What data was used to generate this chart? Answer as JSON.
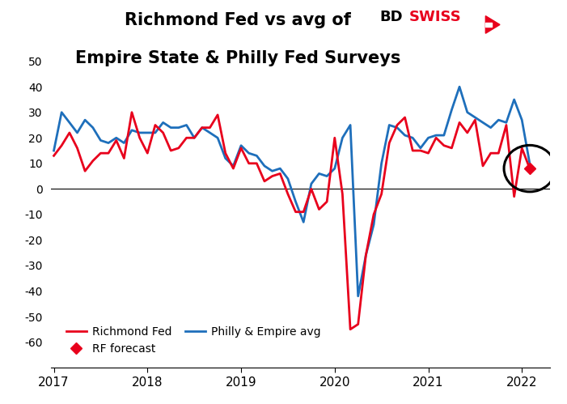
{
  "title_line1": "Richmond Fed vs avg of",
  "title_line2": "Empire State & Philly Fed Surveys",
  "ylim": [
    -70,
    55
  ],
  "yticks": [
    -60,
    -50,
    -40,
    -30,
    -20,
    -10,
    0,
    10,
    20,
    30,
    40,
    50
  ],
  "xlim_start": 2016.97,
  "xlim_end": 2022.3,
  "richmond_color": "#e8001c",
  "philly_color": "#1e6fbb",
  "background_color": "#ffffff",
  "richmond_x": [
    2017.0,
    2017.083,
    2017.167,
    2017.25,
    2017.333,
    2017.417,
    2017.5,
    2017.583,
    2017.667,
    2017.75,
    2017.833,
    2017.917,
    2018.0,
    2018.083,
    2018.167,
    2018.25,
    2018.333,
    2018.417,
    2018.5,
    2018.583,
    2018.667,
    2018.75,
    2018.833,
    2018.917,
    2019.0,
    2019.083,
    2019.167,
    2019.25,
    2019.333,
    2019.417,
    2019.5,
    2019.583,
    2019.667,
    2019.75,
    2019.833,
    2019.917,
    2020.0,
    2020.083,
    2020.167,
    2020.25,
    2020.333,
    2020.417,
    2020.5,
    2020.583,
    2020.667,
    2020.75,
    2020.833,
    2020.917,
    2021.0,
    2021.083,
    2021.167,
    2021.25,
    2021.333,
    2021.417,
    2021.5,
    2021.583,
    2021.667,
    2021.75,
    2021.833,
    2021.917,
    2022.0,
    2022.083
  ],
  "richmond_y": [
    13,
    17,
    22,
    16,
    7,
    11,
    14,
    14,
    19,
    12,
    30,
    20,
    14,
    25,
    22,
    15,
    16,
    20,
    20,
    24,
    24,
    29,
    14,
    8,
    16,
    10,
    10,
    3,
    5,
    6,
    -2,
    -9,
    -9,
    0,
    -8,
    -5,
    20,
    -2,
    -55,
    -53,
    -26,
    -10,
    -2,
    18,
    25,
    28,
    15,
    15,
    14,
    20,
    17,
    16,
    26,
    22,
    27,
    9,
    14,
    14,
    25,
    -3,
    16,
    8
  ],
  "philly_x": [
    2017.0,
    2017.083,
    2017.167,
    2017.25,
    2017.333,
    2017.417,
    2017.5,
    2017.583,
    2017.667,
    2017.75,
    2017.833,
    2017.917,
    2018.0,
    2018.083,
    2018.167,
    2018.25,
    2018.333,
    2018.417,
    2018.5,
    2018.583,
    2018.667,
    2018.75,
    2018.833,
    2018.917,
    2019.0,
    2019.083,
    2019.167,
    2019.25,
    2019.333,
    2019.417,
    2019.5,
    2019.583,
    2019.667,
    2019.75,
    2019.833,
    2019.917,
    2020.0,
    2020.083,
    2020.167,
    2020.25,
    2020.333,
    2020.417,
    2020.5,
    2020.583,
    2020.667,
    2020.75,
    2020.833,
    2020.917,
    2021.0,
    2021.083,
    2021.167,
    2021.25,
    2021.333,
    2021.417,
    2021.5,
    2021.583,
    2021.667,
    2021.75,
    2021.833,
    2021.917,
    2022.0,
    2022.083
  ],
  "philly_y": [
    15,
    30,
    26,
    22,
    27,
    24,
    19,
    18,
    20,
    18,
    23,
    22,
    22,
    22,
    26,
    24,
    24,
    25,
    20,
    24,
    22,
    20,
    12,
    9,
    17,
    14,
    13,
    9,
    7,
    8,
    4,
    -5,
    -13,
    2,
    6,
    5,
    8,
    20,
    25,
    -42,
    -26,
    -14,
    10,
    25,
    24,
    21,
    20,
    16,
    20,
    21,
    21,
    31,
    40,
    30,
    28,
    26,
    24,
    27,
    26,
    35,
    27,
    10
  ],
  "forecast_x": [
    2022.083
  ],
  "forecast_y": [
    8
  ],
  "xticks": [
    2017,
    2018,
    2019,
    2020,
    2021,
    2022
  ],
  "xtick_labels": [
    "2017",
    "2018",
    "2019",
    "2020",
    "2021",
    "2022"
  ]
}
